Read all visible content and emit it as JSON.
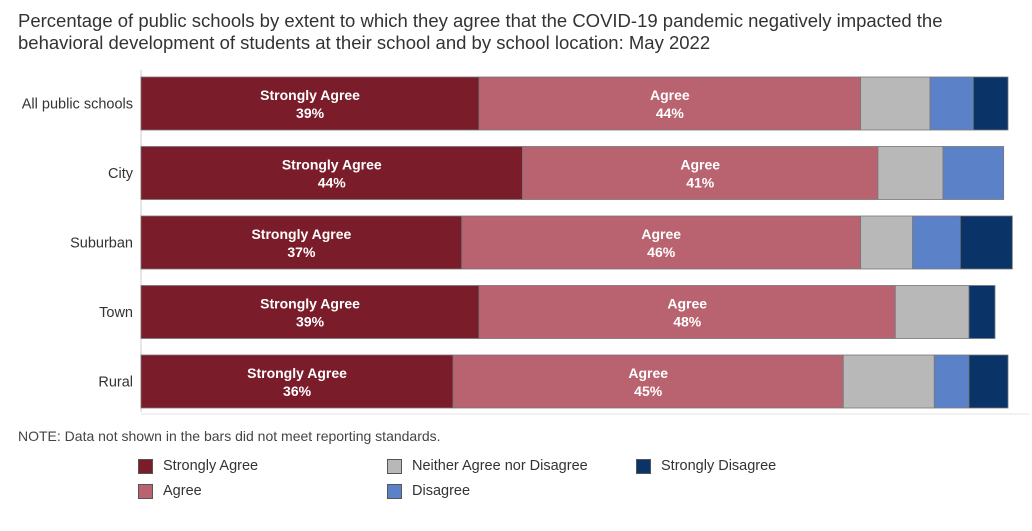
{
  "title": "Percentage of public schools by extent to which they agree that the COVID-19 pandemic negatively impacted the behavioral development of students at their school and by school location: May 2022",
  "note": "NOTE: Data not shown in the bars did not meet reporting standards.",
  "colors": {
    "strongly_agree": "#7b1c2a",
    "agree": "#b8636f",
    "neither": "#b8b8b8",
    "disagree": "#5b82c8",
    "strongly_disagree": "#0a3468"
  },
  "chart_data": {
    "type": "bar",
    "orientation": "horizontal",
    "stacked": true,
    "title": "Percentage of public schools by extent to which they agree that the COVID-19 pandemic negatively impacted the behavioral development of students at their school and by school location: May 2022",
    "categories": [
      "All public schools",
      "City",
      "Suburban",
      "Town",
      "Rural"
    ],
    "xlim": [
      0,
      100
    ],
    "series": [
      {
        "name": "Strongly Agree",
        "key": "strongly_agree",
        "label": "Strongly Agree",
        "values": [
          39,
          44,
          37,
          39,
          36
        ],
        "labeled": true
      },
      {
        "name": "Agree",
        "key": "agree",
        "label": "Agree",
        "values": [
          44,
          41,
          46,
          48,
          45
        ],
        "labeled": true
      },
      {
        "name": "Neither Agree nor Disagree",
        "key": "neither",
        "label": "Neither Agree nor Disagree",
        "values": [
          8,
          7.5,
          6,
          8.5,
          10.5
        ],
        "labeled": false
      },
      {
        "name": "Disagree",
        "key": "disagree",
        "label": "Disagree",
        "values": [
          5,
          7,
          5.5,
          0,
          4
        ],
        "labeled": false
      },
      {
        "name": "Strongly Disagree",
        "key": "strongly_disagree",
        "label": "Strongly Disagree",
        "values": [
          4,
          0,
          6,
          3,
          4.5
        ],
        "labeled": false
      }
    ],
    "value_labels": [
      [
        "39%",
        "44%"
      ],
      [
        "44%",
        "41%"
      ],
      [
        "37%",
        "46%"
      ],
      [
        "39%",
        "48%"
      ],
      [
        "36%",
        "45%"
      ]
    ],
    "legend": {
      "placement": "bottom",
      "entries": [
        "Strongly Agree",
        "Agree",
        "Neither Agree nor Disagree",
        "Disagree",
        "Strongly Disagree"
      ]
    }
  }
}
